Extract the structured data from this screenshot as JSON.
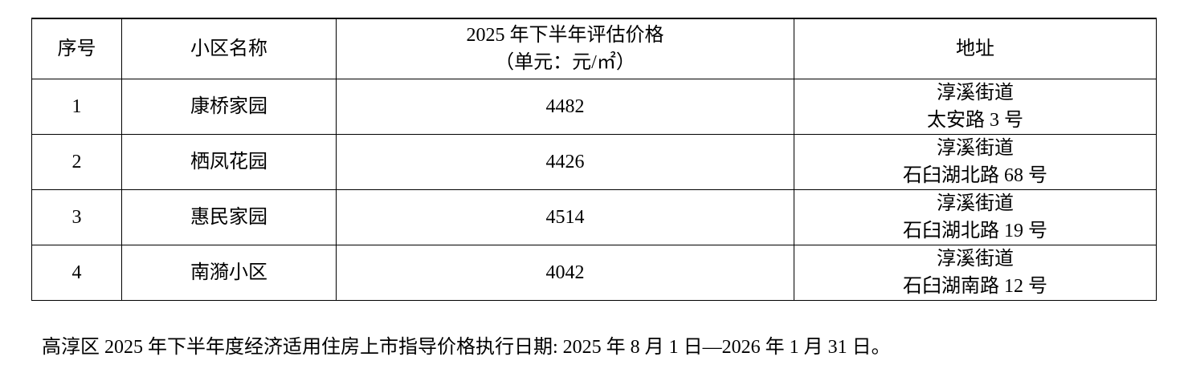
{
  "table": {
    "headers": [
      "序号",
      "小区名称",
      "2025 年下半年评估价格",
      "（单元：元/㎡）",
      "地址"
    ],
    "rows": [
      {
        "no": "1",
        "name": "康桥家园",
        "price": "4482",
        "addr1": "淳溪街道",
        "addr2": "太安路 3 号"
      },
      {
        "no": "2",
        "name": "栖凤花园",
        "price": "4426",
        "addr1": "淳溪街道",
        "addr2": "石臼湖北路 68 号"
      },
      {
        "no": "3",
        "name": "惠民家园",
        "price": "4514",
        "addr1": "淳溪街道",
        "addr2": "石臼湖北路 19 号"
      },
      {
        "no": "4",
        "name": "南漪小区",
        "price": "4042",
        "addr1": "淳溪街道",
        "addr2": "石臼湖南路 12 号"
      }
    ]
  },
  "note": "高淳区 2025 年下半年度经济适用住房上市指导价格执行日期: 2025 年 8 月 1 日—2026 年 1 月 31 日。"
}
